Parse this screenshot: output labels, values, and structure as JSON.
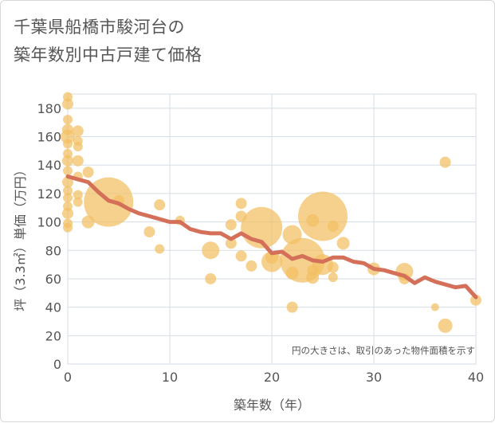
{
  "title_line1": "千葉県船橋市駿河台の",
  "title_line2": "築年数別中古戸建て価格",
  "note": "円の大きさは、取引のあった物件面積を示す",
  "colors": {
    "bubble": "#f3bf63",
    "line": "#d4705a",
    "grid": "#d5dde5"
  },
  "chart_data": {
    "type": "scatter",
    "xlabel": "築年数（年）",
    "ylabel": "坪（3.3㎡）単価（万円）",
    "xlim": [
      0,
      40
    ],
    "ylim": [
      0,
      190
    ],
    "xticks": [
      0,
      10,
      20,
      30,
      40
    ],
    "yticks": [
      0,
      20,
      40,
      60,
      80,
      100,
      120,
      140,
      160,
      180
    ],
    "bubbles": [
      {
        "x": 0,
        "y": 188,
        "s": 6
      },
      {
        "x": 0,
        "y": 183,
        "s": 7
      },
      {
        "x": 0,
        "y": 172,
        "s": 6
      },
      {
        "x": 0,
        "y": 165,
        "s": 7
      },
      {
        "x": 0,
        "y": 160,
        "s": 9
      },
      {
        "x": 0,
        "y": 155,
        "s": 6
      },
      {
        "x": 0,
        "y": 148,
        "s": 6
      },
      {
        "x": 0,
        "y": 143,
        "s": 7
      },
      {
        "x": 0,
        "y": 136,
        "s": 6
      },
      {
        "x": 0,
        "y": 128,
        "s": 7
      },
      {
        "x": 0,
        "y": 122,
        "s": 6
      },
      {
        "x": 0,
        "y": 117,
        "s": 6
      },
      {
        "x": 0,
        "y": 111,
        "s": 6
      },
      {
        "x": 0,
        "y": 106,
        "s": 7
      },
      {
        "x": 0,
        "y": 99,
        "s": 6
      },
      {
        "x": 0,
        "y": 96,
        "s": 6
      },
      {
        "x": 1,
        "y": 164,
        "s": 7
      },
      {
        "x": 1,
        "y": 157,
        "s": 6
      },
      {
        "x": 1,
        "y": 153,
        "s": 6
      },
      {
        "x": 1,
        "y": 143,
        "s": 7
      },
      {
        "x": 1,
        "y": 132,
        "s": 6
      },
      {
        "x": 1,
        "y": 119,
        "s": 6
      },
      {
        "x": 1,
        "y": 114,
        "s": 6
      },
      {
        "x": 2,
        "y": 135,
        "s": 7
      },
      {
        "x": 2,
        "y": 100,
        "s": 8
      },
      {
        "x": 4,
        "y": 114,
        "s": 31
      },
      {
        "x": 5,
        "y": 115,
        "s": 7
      },
      {
        "x": 8,
        "y": 93,
        "s": 7
      },
      {
        "x": 9,
        "y": 112,
        "s": 7
      },
      {
        "x": 9,
        "y": 81,
        "s": 6
      },
      {
        "x": 11,
        "y": 101,
        "s": 6
      },
      {
        "x": 14,
        "y": 80,
        "s": 11
      },
      {
        "x": 14,
        "y": 60,
        "s": 7
      },
      {
        "x": 16,
        "y": 98,
        "s": 7
      },
      {
        "x": 16,
        "y": 85,
        "s": 7
      },
      {
        "x": 17,
        "y": 113,
        "s": 7
      },
      {
        "x": 17,
        "y": 104,
        "s": 7
      },
      {
        "x": 17,
        "y": 76,
        "s": 7
      },
      {
        "x": 18,
        "y": 69,
        "s": 7
      },
      {
        "x": 19,
        "y": 96,
        "s": 26
      },
      {
        "x": 20,
        "y": 72,
        "s": 13
      },
      {
        "x": 20,
        "y": 75,
        "s": 8
      },
      {
        "x": 22,
        "y": 91,
        "s": 12
      },
      {
        "x": 22,
        "y": 64,
        "s": 8
      },
      {
        "x": 22,
        "y": 40,
        "s": 7
      },
      {
        "x": 23,
        "y": 73,
        "s": 28
      },
      {
        "x": 24,
        "y": 101,
        "s": 8
      },
      {
        "x": 24,
        "y": 66,
        "s": 7
      },
      {
        "x": 24,
        "y": 61,
        "s": 8
      },
      {
        "x": 25,
        "y": 104,
        "s": 31
      },
      {
        "x": 25,
        "y": 70,
        "s": 13
      },
      {
        "x": 26,
        "y": 97,
        "s": 7
      },
      {
        "x": 26,
        "y": 68,
        "s": 7
      },
      {
        "x": 26,
        "y": 61,
        "s": 6
      },
      {
        "x": 27,
        "y": 85,
        "s": 8
      },
      {
        "x": 30,
        "y": 67,
        "s": 8
      },
      {
        "x": 33,
        "y": 65,
        "s": 11
      },
      {
        "x": 33,
        "y": 60,
        "s": 7
      },
      {
        "x": 36,
        "y": 40,
        "s": 5
      },
      {
        "x": 37,
        "y": 142,
        "s": 7
      },
      {
        "x": 37,
        "y": 27,
        "s": 9
      },
      {
        "x": 40,
        "y": 45,
        "s": 7
      }
    ],
    "line": {
      "x": [
        0,
        1,
        2,
        3,
        4,
        5,
        6,
        7,
        8,
        9,
        10,
        11,
        12,
        13,
        14,
        15,
        16,
        17,
        18,
        19,
        20,
        21,
        22,
        23,
        24,
        25,
        26,
        27,
        28,
        29,
        30,
        31,
        32,
        33,
        34,
        35,
        36,
        37,
        38,
        39,
        40
      ],
      "y": [
        132,
        130,
        128,
        121,
        115,
        113,
        109,
        106,
        104,
        102,
        100,
        100,
        95,
        93,
        92,
        92,
        88,
        92,
        88,
        86,
        78,
        79,
        74,
        76,
        73,
        72,
        75,
        75,
        72,
        71,
        67,
        66,
        64,
        62,
        57,
        61,
        58,
        56,
        54,
        55,
        47
      ]
    }
  }
}
